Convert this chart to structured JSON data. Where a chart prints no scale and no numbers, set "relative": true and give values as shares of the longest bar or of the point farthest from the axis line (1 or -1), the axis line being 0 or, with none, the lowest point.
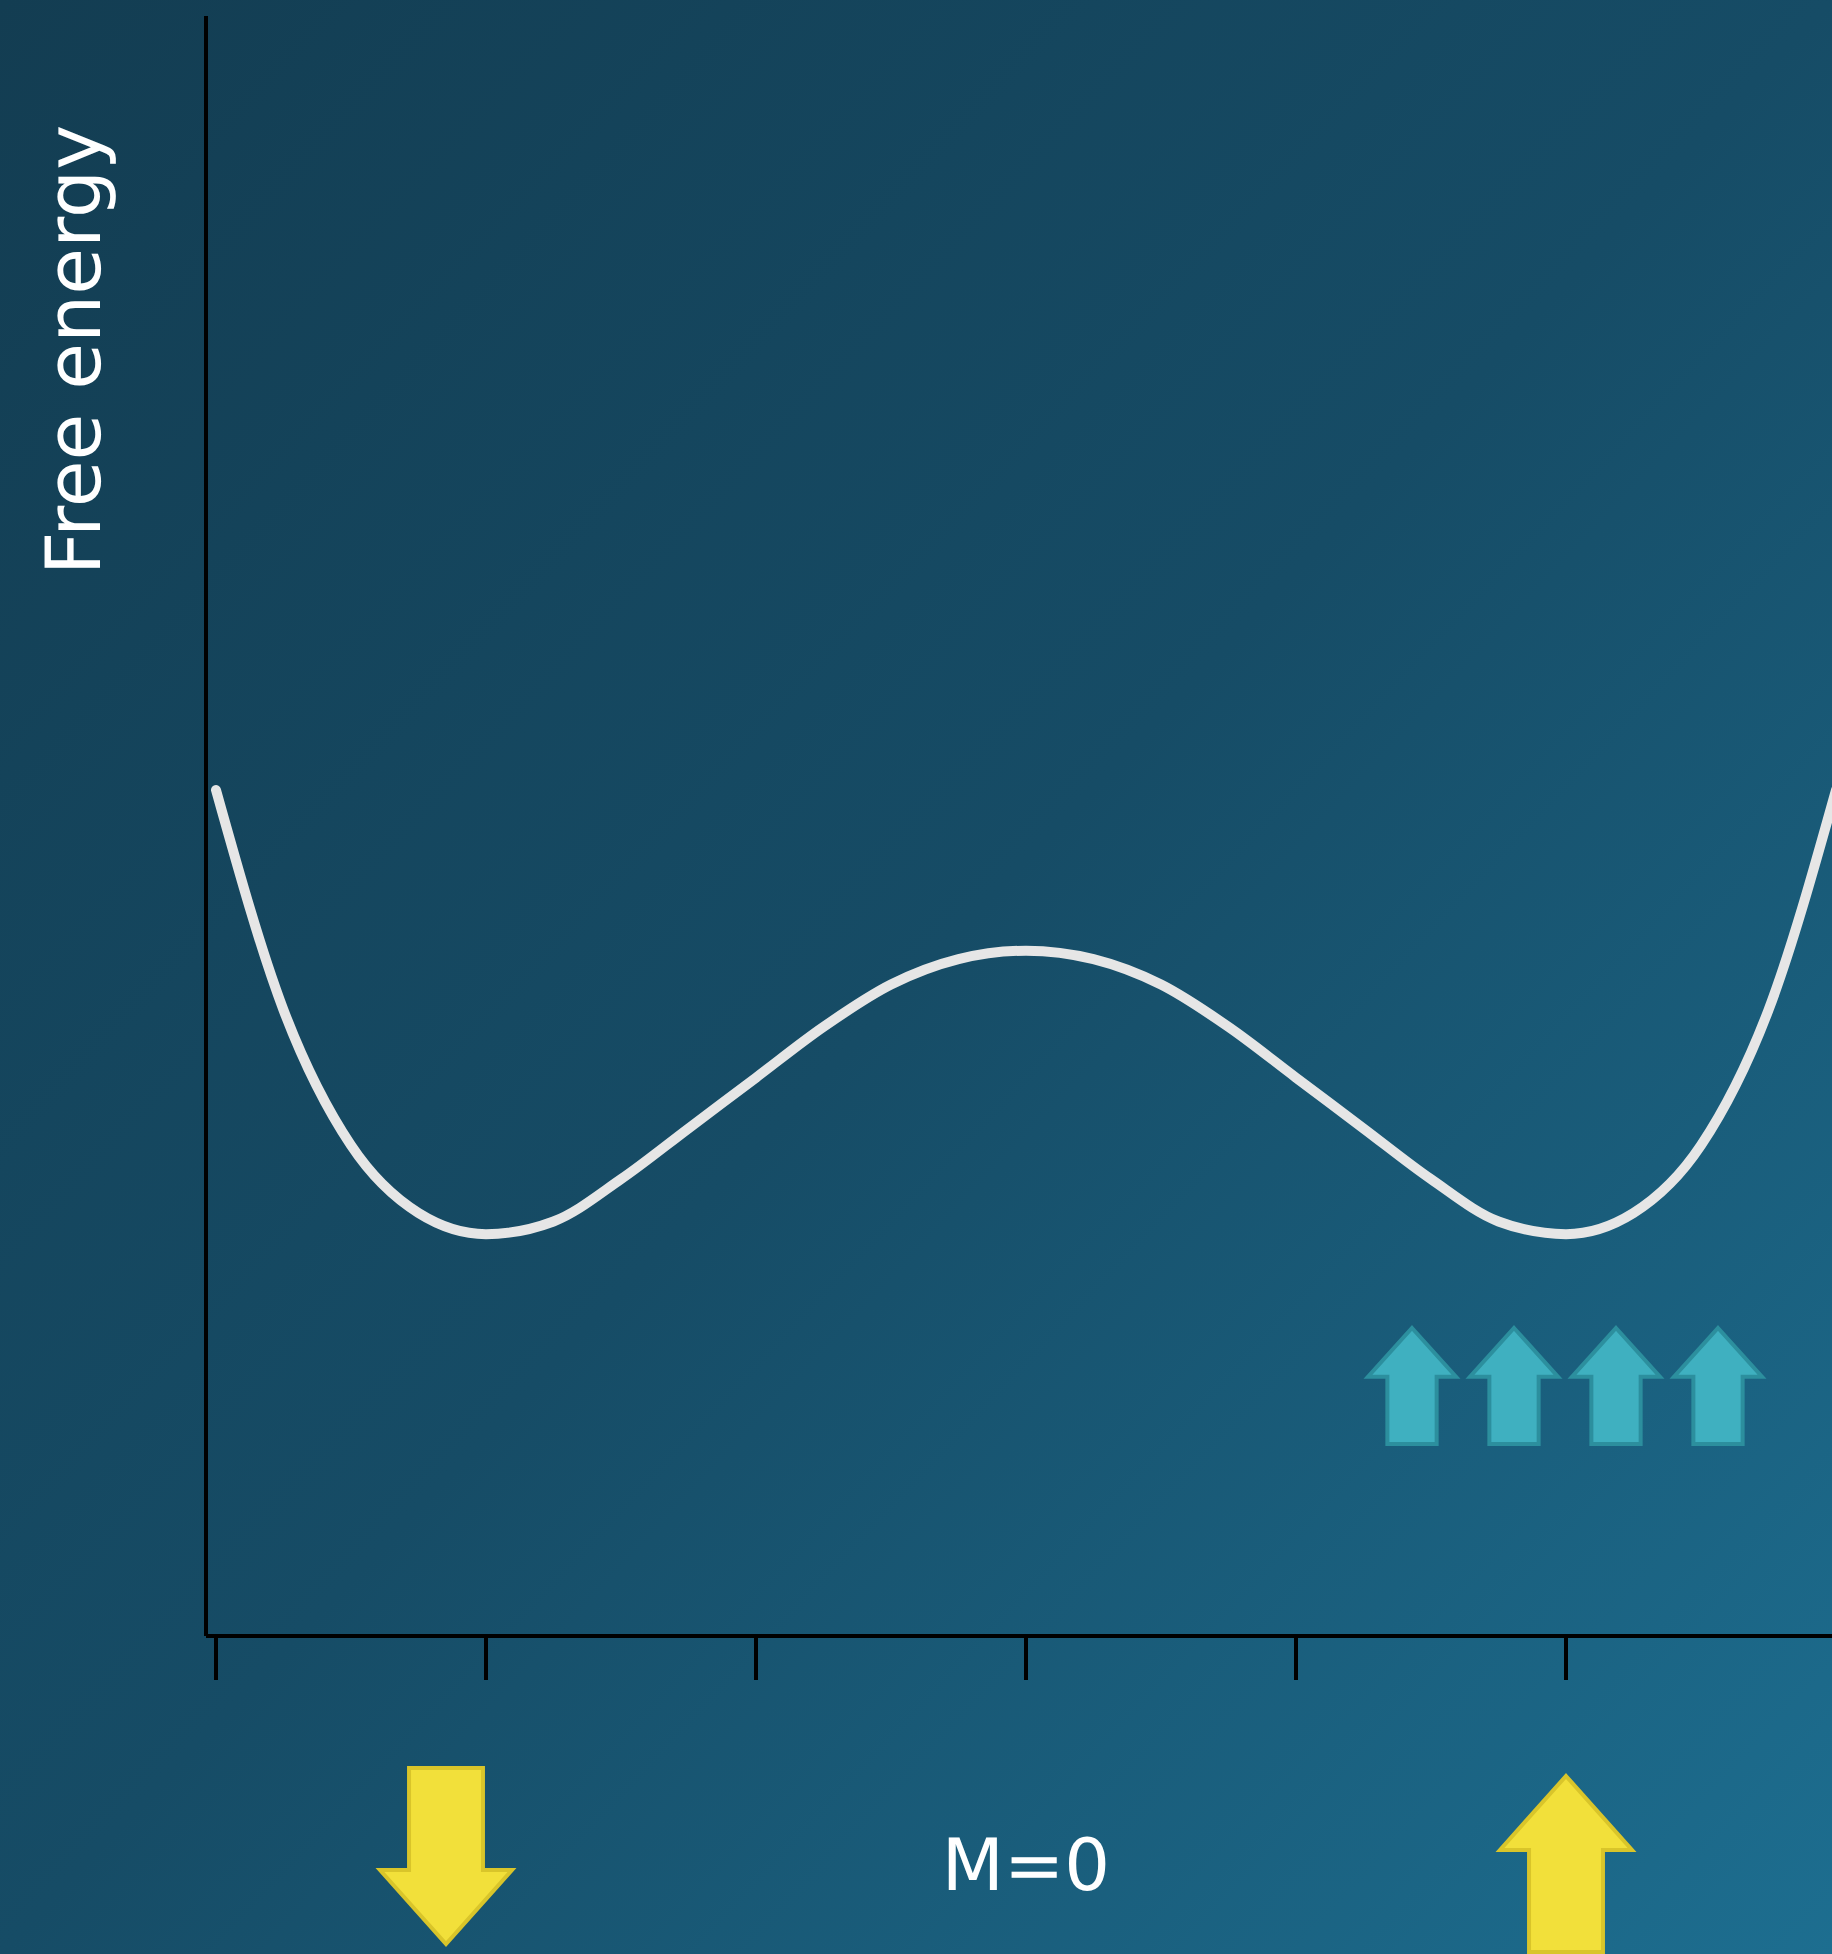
{
  "chart_data": {
    "type": "line",
    "ylabel": "Free energy",
    "relative": true,
    "color": "#e6e6e6",
    "annotations": [
      "M=0"
    ],
    "categories": [
      null,
      null,
      null,
      null,
      null,
      null,
      null,
      null,
      null,
      null,
      null,
      null,
      null,
      null,
      null,
      null,
      null,
      null,
      null,
      null,
      null,
      null,
      null,
      null,
      null
    ],
    "values": [
      1.0,
      0.74,
      0.58,
      0.5,
      0.475,
      0.49,
      0.54,
      0.6,
      0.66,
      0.72,
      0.77,
      0.8,
      0.81,
      0.8,
      0.77,
      0.72,
      0.66,
      0.6,
      0.54,
      0.49,
      0.475,
      0.5,
      0.58,
      0.74,
      1.0
    ]
  }
}
